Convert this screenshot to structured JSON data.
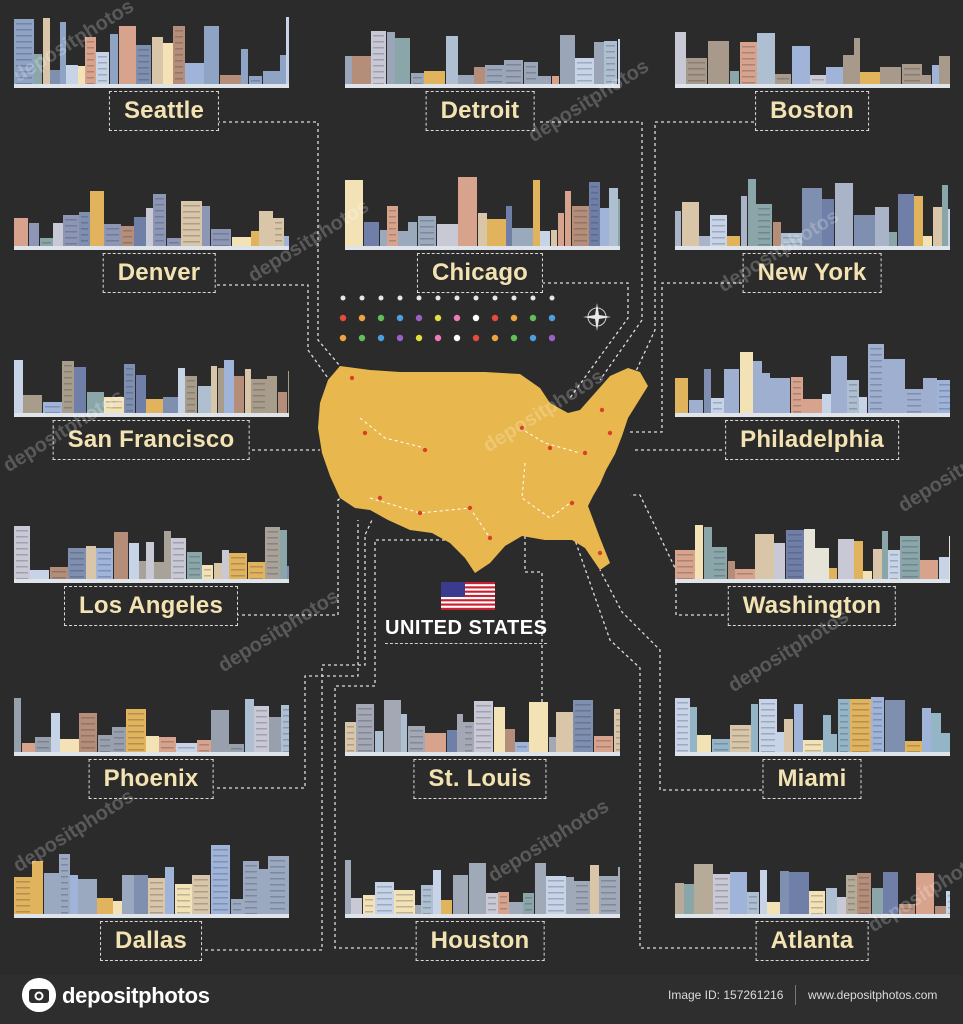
{
  "title": "UNITED STATES",
  "cities": [
    {
      "name": "Seattle",
      "tone": "#8fa3c4"
    },
    {
      "name": "Detroit",
      "tone": "#9aa6b8"
    },
    {
      "name": "Boston",
      "tone": "#a89a8a"
    },
    {
      "name": "Denver",
      "tone": "#8d97b5"
    },
    {
      "name": "Chicago",
      "tone": "#9aa9bb"
    },
    {
      "name": "New York",
      "tone": "#a9b4c9"
    },
    {
      "name": "San Francisco",
      "tone": "#a89c8b"
    },
    {
      "name": "Philadelphia",
      "tone": "#9eafd0"
    },
    {
      "name": "Los Angeles",
      "tone": "#a8a299"
    },
    {
      "name": "Washington",
      "tone": "#e6e3d8"
    },
    {
      "name": "Phoenix",
      "tone": "#99a0ad"
    },
    {
      "name": "St. Louis",
      "tone": "#a3a8b4"
    },
    {
      "name": "Miami",
      "tone": "#94b5c6"
    },
    {
      "name": "Dallas",
      "tone": "#9aa8c0"
    },
    {
      "name": "Houston",
      "tone": "#a0a9b7"
    },
    {
      "name": "Atlanta",
      "tone": "#b5ab98"
    }
  ],
  "map": {
    "land_color": "#e8b84e",
    "icon": "us-map"
  },
  "flag": {
    "icon": "us-flag"
  },
  "watermark": "depositphotos",
  "footer": {
    "brand": "depositphotos",
    "image_id": "Image ID: 157261216",
    "site": "www.depositphotos.com"
  }
}
